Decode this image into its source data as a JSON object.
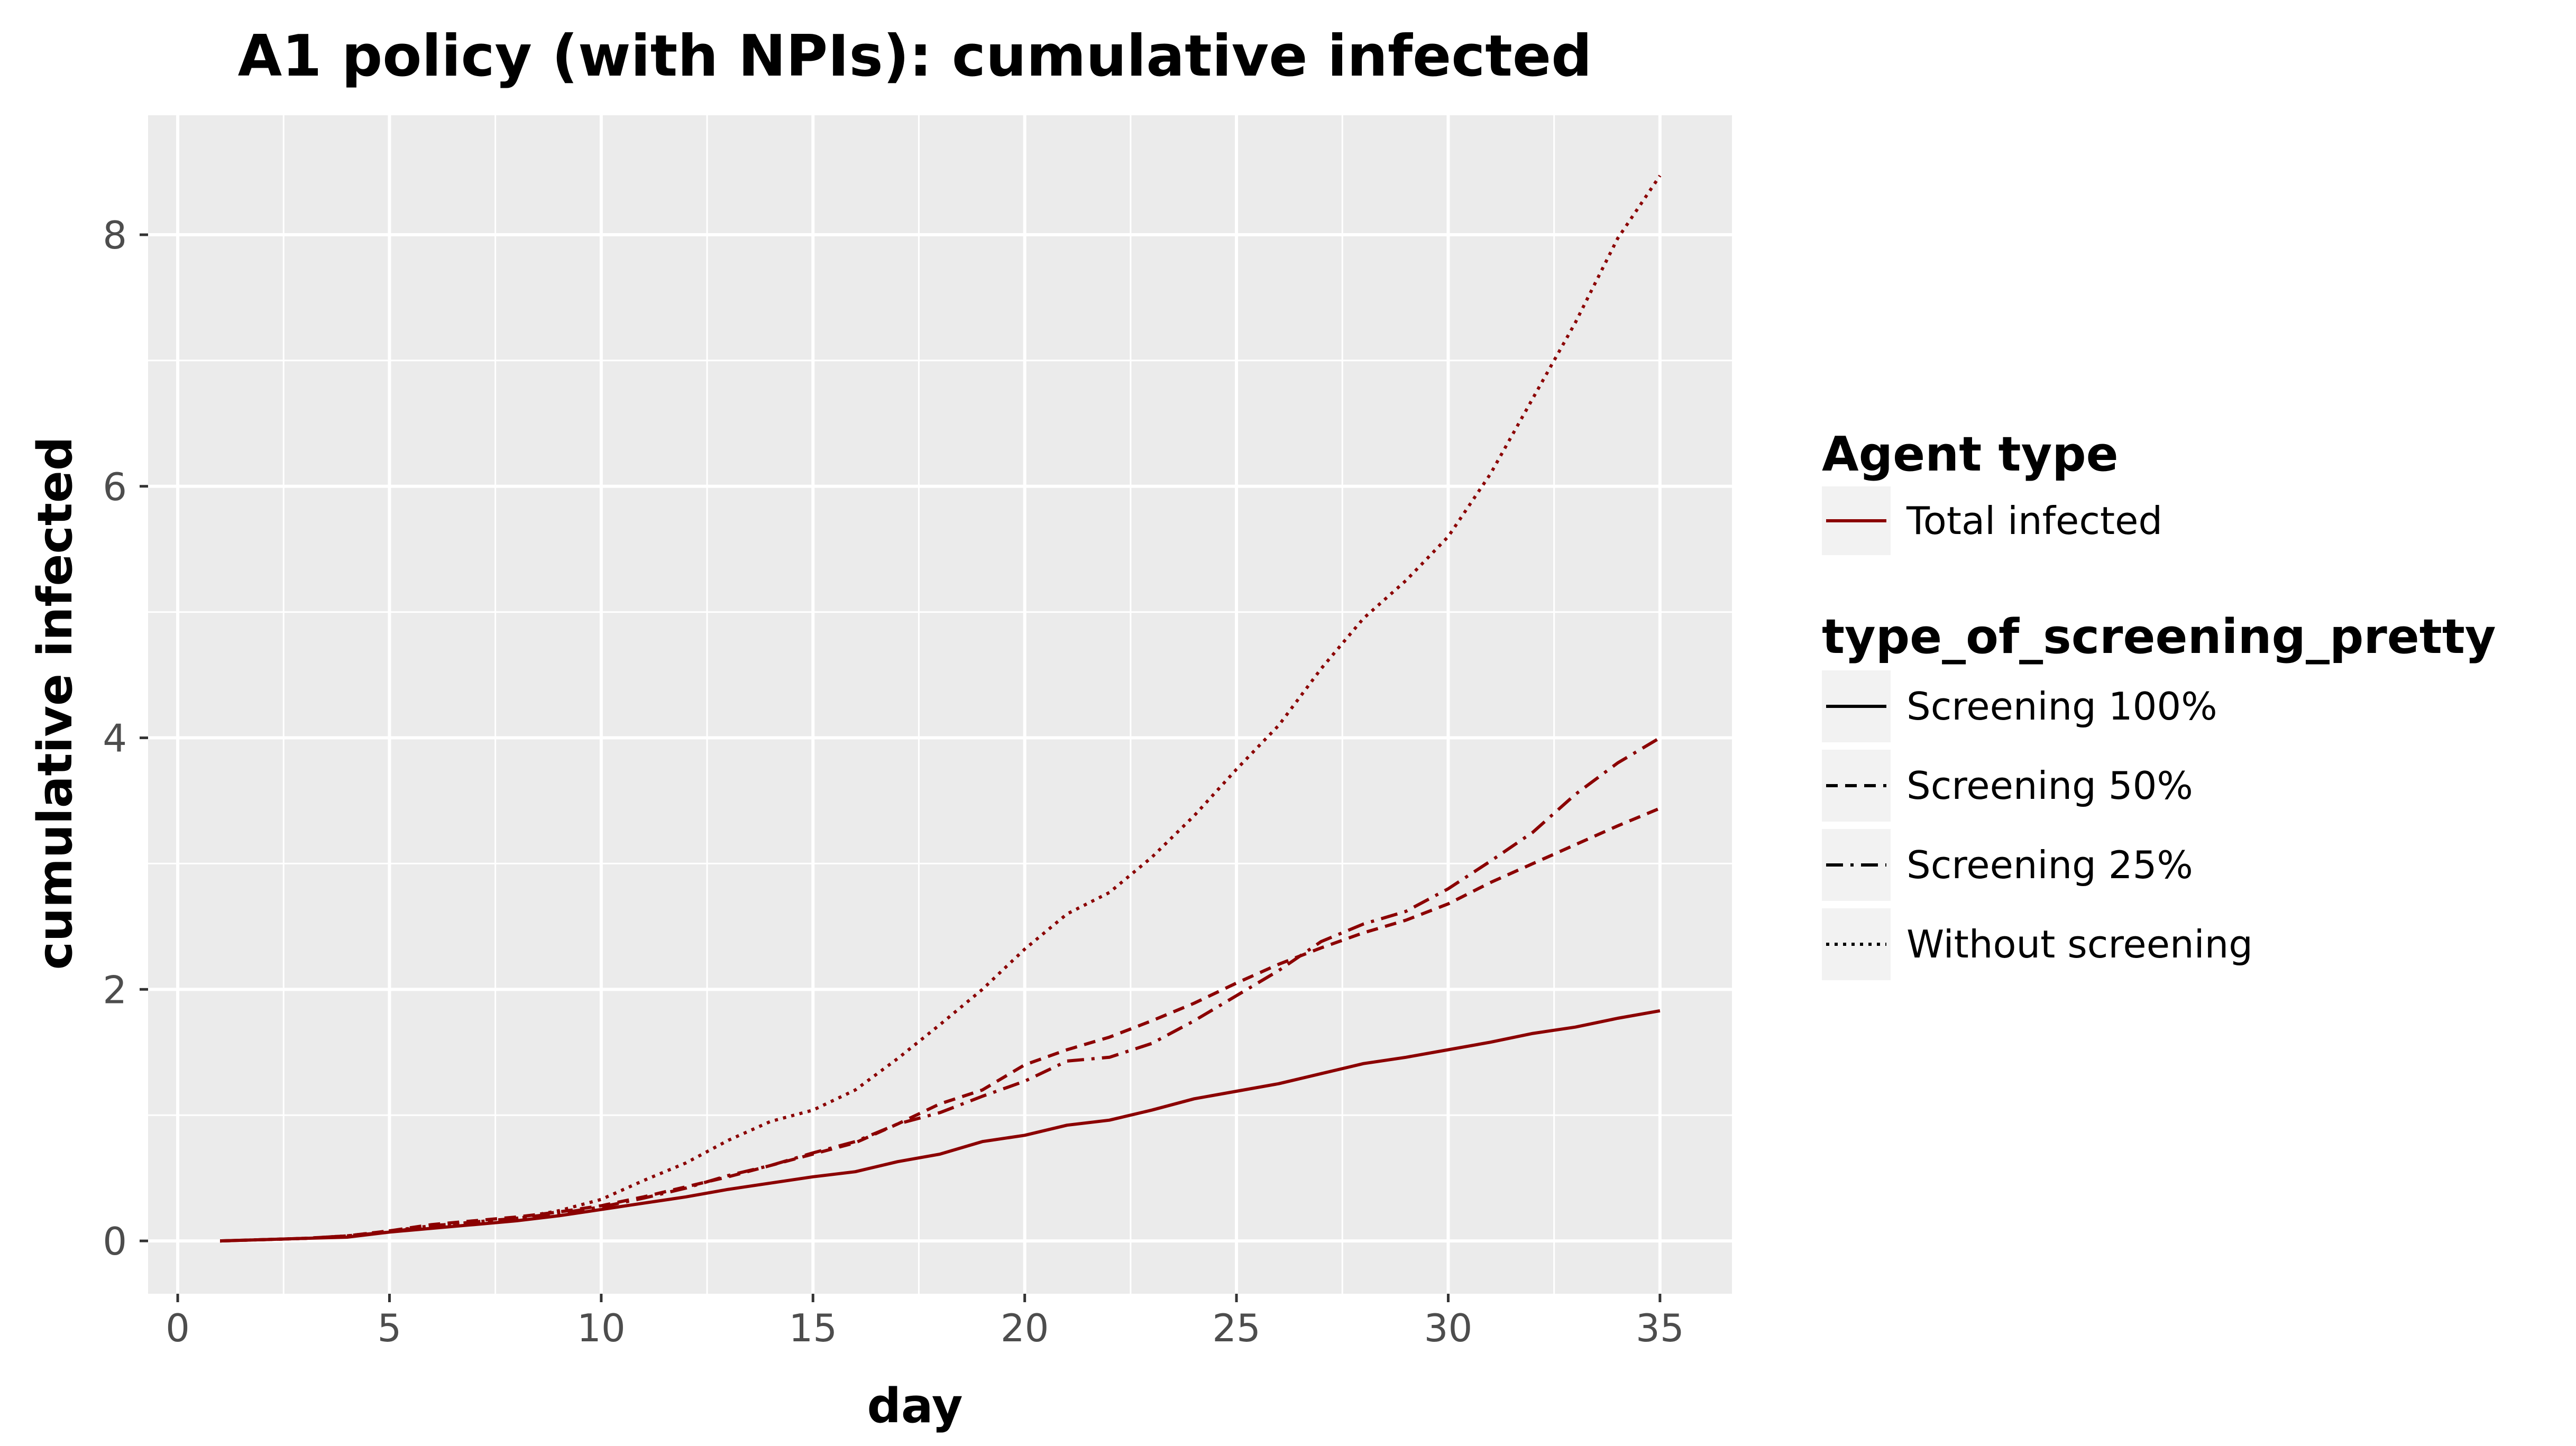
{
  "chart_data": {
    "type": "line",
    "title": "A1 policy (with NPIs): cumulative infected",
    "xlabel": "day",
    "ylabel": "cumulative infected",
    "xlim": [
      -0.7,
      36.7
    ],
    "ylim": [
      -0.42,
      8.95
    ],
    "x_ticks": [
      0,
      5,
      10,
      15,
      20,
      25,
      30,
      35
    ],
    "x_tick_labels": [
      "0",
      "5",
      "10",
      "15",
      "20",
      "25",
      "30",
      "35"
    ],
    "y_ticks": [
      0,
      2,
      4,
      6,
      8
    ],
    "y_tick_labels": [
      "0",
      "2",
      "4",
      "6",
      "8"
    ],
    "grid": true,
    "color": "#8b0000",
    "legend_position": "right",
    "legend": {
      "color_title": "Agent type",
      "color_entries": [
        "Total infected"
      ],
      "linetype_title": "type_of_screening_pretty",
      "linetype_entries": [
        "Screening 100%",
        "Screening 50%",
        "Screening 25%",
        "Without screening"
      ]
    },
    "x": [
      1,
      2,
      3,
      4,
      5,
      6,
      7,
      8,
      9,
      10,
      11,
      12,
      13,
      14,
      15,
      16,
      17,
      18,
      19,
      20,
      21,
      22,
      23,
      24,
      25,
      26,
      27,
      28,
      29,
      30,
      31,
      32,
      33,
      34,
      35
    ],
    "series": [
      {
        "name": "Screening 100%",
        "linetype": "solid",
        "values": [
          0,
          0.01,
          0.02,
          0.03,
          0.07,
          0.1,
          0.13,
          0.16,
          0.2,
          0.25,
          0.3,
          0.35,
          0.41,
          0.46,
          0.51,
          0.55,
          0.63,
          0.69,
          0.79,
          0.84,
          0.92,
          0.96,
          1.04,
          1.13,
          1.19,
          1.25,
          1.33,
          1.41,
          1.46,
          1.52,
          1.58,
          1.65,
          1.7,
          1.77,
          1.83
        ]
      },
      {
        "name": "Screening 50%",
        "linetype": "dashed",
        "values": [
          0,
          0.01,
          0.02,
          0.04,
          0.08,
          0.13,
          0.16,
          0.19,
          0.23,
          0.28,
          0.35,
          0.43,
          0.51,
          0.6,
          0.69,
          0.78,
          0.93,
          1.09,
          1.2,
          1.4,
          1.52,
          1.62,
          1.75,
          1.89,
          2.05,
          2.2,
          2.33,
          2.45,
          2.55,
          2.68,
          2.85,
          3.0,
          3.15,
          3.3,
          3.44
        ]
      },
      {
        "name": "Screening 25%",
        "linetype": "dotdash",
        "values": [
          0,
          0.01,
          0.02,
          0.04,
          0.07,
          0.12,
          0.15,
          0.18,
          0.22,
          0.27,
          0.34,
          0.42,
          0.52,
          0.6,
          0.7,
          0.79,
          0.93,
          1.02,
          1.15,
          1.27,
          1.43,
          1.46,
          1.57,
          1.75,
          1.95,
          2.15,
          2.38,
          2.52,
          2.62,
          2.8,
          3.02,
          3.25,
          3.55,
          3.8,
          4.0
        ]
      },
      {
        "name": "Without screening",
        "linetype": "dotted",
        "values": [
          0,
          0.01,
          0.02,
          0.04,
          0.08,
          0.12,
          0.15,
          0.18,
          0.24,
          0.33,
          0.48,
          0.62,
          0.8,
          0.95,
          1.04,
          1.2,
          1.45,
          1.72,
          2.0,
          2.32,
          2.6,
          2.77,
          3.05,
          3.38,
          3.75,
          4.1,
          4.55,
          4.95,
          5.25,
          5.6,
          6.1,
          6.7,
          7.3,
          7.97,
          8.47
        ]
      }
    ]
  }
}
